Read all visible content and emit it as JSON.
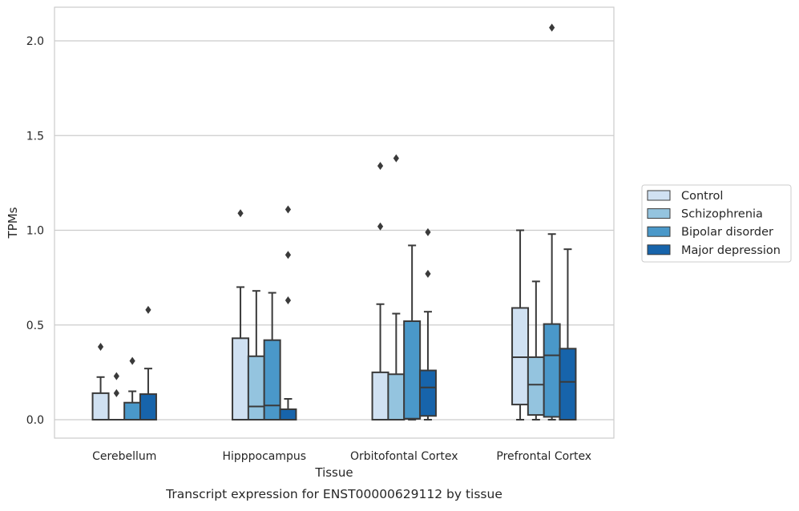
{
  "caption": "Transcript expression for ENST00000629112 by tissue",
  "chart_data": {
    "type": "boxplot",
    "xlabel": "Tissue",
    "ylabel": "TPMs",
    "ylim": [
      -0.1,
      2.18
    ],
    "yticks": [
      "0.0",
      "0.5",
      "1.0",
      "1.5",
      "2.0"
    ],
    "ytick_values": [
      0.0,
      0.5,
      1.0,
      1.5,
      2.0
    ],
    "grid": "horizontal",
    "legend_position": "right",
    "categories": [
      "Cerebellum",
      "Hipppocampus",
      "Orbitofontal Cortex",
      "Prefrontal Cortex"
    ],
    "series": [
      {
        "name": "Control",
        "color": "#d0e1f2",
        "boxes": [
          {
            "whislo": 0.0,
            "q1": 0.0,
            "med": 0.0,
            "q3": 0.14,
            "whishi": 0.225,
            "fliers": [
              0.385
            ]
          },
          {
            "whislo": 0.0,
            "q1": 0.0,
            "med": 0.0,
            "q3": 0.43,
            "whishi": 0.7,
            "fliers": [
              1.09
            ]
          },
          {
            "whislo": 0.0,
            "q1": 0.0,
            "med": 0.0,
            "q3": 0.25,
            "whishi": 0.61,
            "fliers": [
              1.02,
              1.34
            ]
          },
          {
            "whislo": 0.0,
            "q1": 0.08,
            "med": 0.33,
            "q3": 0.59,
            "whishi": 1.0,
            "fliers": []
          }
        ]
      },
      {
        "name": "Schizophrenia",
        "color": "#94c4df",
        "boxes": [
          {
            "whislo": 0.0,
            "q1": 0.0,
            "med": 0.0,
            "q3": 0.0,
            "whishi": 0.0,
            "fliers": [
              0.14,
              0.23
            ]
          },
          {
            "whislo": 0.0,
            "q1": 0.0,
            "med": 0.07,
            "q3": 0.335,
            "whishi": 0.68,
            "fliers": []
          },
          {
            "whislo": 0.0,
            "q1": 0.0,
            "med": 0.0,
            "q3": 0.24,
            "whishi": 0.56,
            "fliers": [
              1.38
            ]
          },
          {
            "whislo": 0.0,
            "q1": 0.025,
            "med": 0.185,
            "q3": 0.33,
            "whishi": 0.73,
            "fliers": []
          }
        ]
      },
      {
        "name": "Bipolar disorder",
        "color": "#4a98c9",
        "boxes": [
          {
            "whislo": 0.0,
            "q1": 0.0,
            "med": 0.0,
            "q3": 0.09,
            "whishi": 0.15,
            "fliers": [
              0.31
            ]
          },
          {
            "whislo": 0.0,
            "q1": 0.0,
            "med": 0.075,
            "q3": 0.42,
            "whishi": 0.67,
            "fliers": []
          },
          {
            "whislo": 0.0,
            "q1": 0.005,
            "med": 0.005,
            "q3": 0.52,
            "whishi": 0.92,
            "fliers": []
          },
          {
            "whislo": 0.0,
            "q1": 0.015,
            "med": 0.34,
            "q3": 0.505,
            "whishi": 0.98,
            "fliers": [
              2.07
            ]
          }
        ]
      },
      {
        "name": "Major depression",
        "color": "#1764ab",
        "boxes": [
          {
            "whislo": 0.0,
            "q1": 0.0,
            "med": 0.0,
            "q3": 0.135,
            "whishi": 0.27,
            "fliers": [
              0.58
            ]
          },
          {
            "whislo": 0.0,
            "q1": 0.0,
            "med": 0.0,
            "q3": 0.055,
            "whishi": 0.11,
            "fliers": [
              0.63,
              0.87,
              1.11
            ]
          },
          {
            "whislo": 0.0,
            "q1": 0.02,
            "med": 0.17,
            "q3": 0.26,
            "whishi": 0.57,
            "fliers": [
              0.77,
              0.99
            ]
          },
          {
            "whislo": 0.0,
            "q1": 0.0,
            "med": 0.2,
            "q3": 0.375,
            "whishi": 0.9,
            "fliers": []
          }
        ]
      }
    ]
  },
  "colors": {
    "axes_edge": "#cccccc",
    "grid": "#cccccc",
    "box_edge": "#3a3a3a",
    "legend_edge": "#cccccc"
  }
}
